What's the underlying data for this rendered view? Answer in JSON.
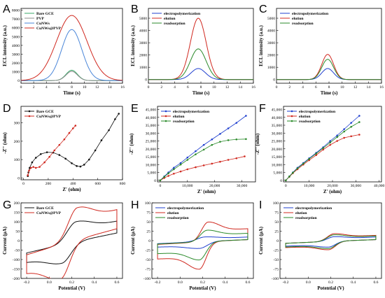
{
  "figure": {
    "panels": [
      {
        "letter": "A"
      },
      {
        "letter": "B"
      },
      {
        "letter": "C"
      },
      {
        "letter": "D"
      },
      {
        "letter": "E"
      },
      {
        "letter": "F"
      },
      {
        "letter": "G"
      },
      {
        "letter": "H"
      },
      {
        "letter": "I"
      }
    ]
  },
  "colors": {
    "black": "#111111",
    "red": "#d0281f",
    "blue": "#1f3fcf",
    "green": "#2a8a2a",
    "gray": "#8c8c8c",
    "teal": "#3aaa6a",
    "lightblue": "#4a86d8"
  },
  "chart_data": [
    {
      "id": "A",
      "type": "line",
      "xlabel": "Time (s)",
      "ylabel": "ECL intensity (a.u.)",
      "xlim": [
        0,
        16
      ],
      "ylim": [
        -300,
        8200
      ],
      "xticks": [
        0,
        2,
        4,
        6,
        8,
        10,
        12,
        14,
        16
      ],
      "yticks": [
        0,
        1000,
        2000,
        3000,
        4000,
        5000,
        6000,
        7000,
        8000
      ],
      "legend": "top-left",
      "series": [
        {
          "name": "Bare GCE",
          "color": "#3aaa6a",
          "kind": "peak",
          "peak_x": 8,
          "peak_y": 1180,
          "width": 0.9
        },
        {
          "name": "PVP",
          "color": "#8c8c8c",
          "kind": "peak",
          "peak_x": 8,
          "peak_y": 1050,
          "width": 0.9
        },
        {
          "name": "CuNWs",
          "color": "#4a86d8",
          "kind": "peak",
          "peak_x": 8,
          "peak_y": 5800,
          "width": 1.6
        },
        {
          "name": "CuNWs@PVP",
          "color": "#d0281f",
          "kind": "peak",
          "peak_x": 8,
          "peak_y": 7400,
          "width": 2.4
        }
      ]
    },
    {
      "id": "B",
      "type": "line",
      "xlabel": "Time (s)",
      "ylabel": "ECL intensity (a.u.)",
      "xlim": [
        0,
        16
      ],
      "ylim": [
        -300,
        5800
      ],
      "xticks": [
        0,
        2,
        4,
        6,
        8,
        10,
        12,
        14,
        16
      ],
      "yticks": [
        0,
        1000,
        2000,
        3000,
        4000,
        5000
      ],
      "legend": "top-left",
      "series": [
        {
          "name": "electropolymerization",
          "color": "#1f3fcf",
          "kind": "peak",
          "peak_x": 7.6,
          "peak_y": 900,
          "width": 1.1
        },
        {
          "name": "elution",
          "color": "#d0281f",
          "kind": "peak",
          "peak_x": 7.6,
          "peak_y": 5000,
          "width": 1.2
        },
        {
          "name": "readsorption",
          "color": "#2a8a2a",
          "kind": "peak",
          "peak_x": 7.6,
          "peak_y": 2500,
          "width": 1.2
        }
      ]
    },
    {
      "id": "C",
      "type": "line",
      "xlabel": "Time (s)",
      "ylabel": "ECL intensity (a.u.)",
      "xlim": [
        0,
        16
      ],
      "ylim": [
        -300,
        5800
      ],
      "xticks": [
        0,
        2,
        4,
        6,
        8,
        10,
        12,
        14,
        16
      ],
      "yticks": [
        0,
        1000,
        2000,
        3000,
        4000,
        5000
      ],
      "legend": "top-left",
      "series": [
        {
          "name": "electropolymerization",
          "color": "#1f3fcf",
          "kind": "peak",
          "peak_x": 7.8,
          "peak_y": 900,
          "width": 0.9
        },
        {
          "name": "elution",
          "color": "#d0281f",
          "kind": "peak",
          "peak_x": 7.8,
          "peak_y": 2050,
          "width": 0.9
        },
        {
          "name": "readsorption",
          "color": "#2a8a2a",
          "kind": "peak",
          "peak_x": 7.8,
          "peak_y": 1650,
          "width": 0.9
        }
      ]
    },
    {
      "id": "D",
      "type": "scatter",
      "xlabel": "Z' (ohm)",
      "ylabel": "-Z'' (ohm)",
      "xlim": [
        -20,
        800
      ],
      "ylim": [
        -10,
        390
      ],
      "xticks": [
        0,
        200,
        400,
        600,
        800
      ],
      "yticks": [
        0,
        100,
        200,
        300
      ],
      "legend": "top-left",
      "series": [
        {
          "name": "Bare GCE",
          "color": "#111111",
          "kind": "points",
          "x": [
            35,
            40,
            50,
            70,
            100,
            140,
            190,
            240,
            290,
            340,
            390,
            430,
            460,
            490,
            530,
            580,
            630,
            690,
            740,
            770
          ],
          "y": [
            10,
            30,
            55,
            85,
            110,
            130,
            140,
            138,
            125,
            105,
            80,
            65,
            62,
            72,
            100,
            150,
            205,
            260,
            320,
            350
          ]
        },
        {
          "name": "CuNWs@PVP",
          "color": "#d0281f",
          "kind": "points",
          "x": [
            35,
            45,
            60,
            80,
            100,
            130,
            170,
            210,
            250,
            290,
            330,
            370,
            400,
            420
          ],
          "y": [
            15,
            40,
            55,
            60,
            55,
            60,
            85,
            115,
            150,
            180,
            210,
            245,
            270,
            285
          ]
        }
      ]
    },
    {
      "id": "E",
      "type": "scatter",
      "xlabel": "Z' (ohm)",
      "ylabel": "-Z'' (ohm)",
      "xlim": [
        -1000,
        35000
      ],
      "ylim": [
        -1000,
        47000
      ],
      "xticks": [
        0,
        10000,
        20000,
        30000
      ],
      "xticklabels": [
        "0",
        "10,000",
        "20,000",
        "30,000"
      ],
      "yticks": [
        0,
        5000,
        10000,
        15000,
        20000,
        25000,
        30000,
        35000,
        40000,
        45000
      ],
      "yticklabels": [
        "0",
        "5,000",
        "10,000",
        "15,000",
        "20,000",
        "25,000",
        "30,000",
        "35,000",
        "40,000",
        "45,000"
      ],
      "legend": "top-left",
      "series": [
        {
          "name": "electropolymerization",
          "color": "#1f3fcf",
          "kind": "points",
          "x": [
            0,
            1500,
            3000,
            5000,
            7500,
            10000,
            13000,
            16000,
            19000,
            22000,
            25000,
            28000,
            31500
          ],
          "y": [
            0,
            2500,
            5000,
            8000,
            11000,
            14500,
            18500,
            22500,
            26000,
            29500,
            33000,
            36500,
            41000
          ]
        },
        {
          "name": "elution",
          "color": "#d0281f",
          "kind": "points",
          "x": [
            0,
            1500,
            3000,
            5000,
            7500,
            10000,
            13000,
            16000,
            19000,
            22000,
            25000,
            28000,
            31000
          ],
          "y": [
            0,
            1500,
            2800,
            4200,
            5600,
            7000,
            8300,
            9500,
            10600,
            11800,
            13000,
            14000,
            15200
          ]
        },
        {
          "name": "readsorption",
          "color": "#2a8a2a",
          "kind": "points",
          "x": [
            0,
            1500,
            3000,
            5000,
            7500,
            10000,
            13000,
            16000,
            19000,
            22000,
            25000,
            28000,
            31500
          ],
          "y": [
            0,
            2200,
            4400,
            7000,
            10000,
            13000,
            16500,
            19500,
            22500,
            24500,
            25500,
            26000,
            26200
          ]
        }
      ]
    },
    {
      "id": "F",
      "type": "scatter",
      "xlabel": "Z' (ohm)",
      "ylabel": "-Z'' (ohm)",
      "xlim": [
        -1000,
        41000
      ],
      "ylim": [
        -1000,
        47000
      ],
      "xticks": [
        0,
        10000,
        20000,
        30000,
        40000
      ],
      "xticklabels": [
        "0",
        "10,000",
        "20,000",
        "30,000",
        "40,000"
      ],
      "yticks": [
        0,
        5000,
        10000,
        15000,
        20000,
        25000,
        30000,
        35000,
        40000,
        45000
      ],
      "yticklabels": [
        "0",
        "5,000",
        "10,000",
        "15,000",
        "20,000",
        "25,000",
        "30,000",
        "35,000",
        "40,000",
        "45,000"
      ],
      "legend": "top-left",
      "series": [
        {
          "name": "electropolymerization",
          "color": "#1f3fcf",
          "kind": "points",
          "x": [
            0,
            1500,
            3000,
            5000,
            7500,
            10000,
            13000,
            16000,
            19000,
            22000,
            25000,
            28000,
            31500
          ],
          "y": [
            0,
            2500,
            5000,
            8000,
            11000,
            14000,
            17500,
            21000,
            25000,
            28500,
            32500,
            36500,
            41000
          ]
        },
        {
          "name": "elution",
          "color": "#d0281f",
          "kind": "points",
          "x": [
            0,
            1500,
            3000,
            5000,
            7500,
            10000,
            13000,
            16000,
            19000,
            22000,
            25000,
            28000,
            31500
          ],
          "y": [
            0,
            2200,
            4500,
            7000,
            10000,
            12800,
            16000,
            19500,
            22500,
            25000,
            27000,
            28000,
            29000
          ]
        },
        {
          "name": "readsorption",
          "color": "#2a8a2a",
          "kind": "points",
          "x": [
            0,
            1500,
            3000,
            5000,
            7500,
            10000,
            13000,
            16000,
            19000,
            22000,
            25000,
            28000,
            31500
          ],
          "y": [
            0,
            2400,
            4800,
            7600,
            10600,
            13600,
            17000,
            20500,
            24000,
            27500,
            31000,
            34000,
            37000
          ]
        }
      ]
    },
    {
      "id": "G",
      "type": "line",
      "xlabel": "Potential (V)",
      "ylabel": "Current (μA)",
      "xlim": [
        -0.25,
        0.65
      ],
      "ylim": [
        -200,
        200
      ],
      "xticks": [
        -0.2,
        0.0,
        0.2,
        0.4,
        0.6
      ],
      "xticklabels": [
        "-0.2",
        "0.0",
        "0.2",
        "0.4",
        "0.6"
      ],
      "yticks": [
        -200,
        -150,
        -100,
        -50,
        0,
        50,
        100,
        150,
        200
      ],
      "legend": "top-left",
      "series": [
        {
          "name": "Bare GCE",
          "color": "#111111",
          "kind": "cv",
          "x0": -0.2,
          "x1": 0.6,
          "ipa": 105,
          "epa": 0.24,
          "ipc": -100,
          "epc": 0.11,
          "w": 0.08,
          "base0": -65,
          "base1": 45
        },
        {
          "name": "CuNWs@PVP",
          "color": "#d0281f",
          "kind": "cv",
          "x0": -0.2,
          "x1": 0.6,
          "ipa": 168,
          "epa": 0.25,
          "ipc": -185,
          "epc": 0.1,
          "w": 0.08,
          "base0": -75,
          "base1": 70
        }
      ]
    },
    {
      "id": "H",
      "type": "line",
      "xlabel": "Potential (V)",
      "ylabel": "Current (μA)",
      "xlim": [
        -0.25,
        0.65
      ],
      "ylim": [
        -100,
        100
      ],
      "xticks": [
        -0.2,
        0.0,
        0.2,
        0.4,
        0.6
      ],
      "xticklabels": [
        "-0.2",
        "0.0",
        "0.2",
        "0.4",
        "0.6"
      ],
      "yticks": [
        -100,
        -75,
        -50,
        -25,
        0,
        25,
        50,
        75,
        100
      ],
      "legend": "top-left",
      "series": [
        {
          "name": "electropolymerization",
          "color": "#1f3fcf",
          "kind": "cv",
          "x0": -0.2,
          "x1": 0.6,
          "ipa": 12,
          "epa": 0.22,
          "ipc": -18,
          "epc": 0.17,
          "w": 0.07,
          "base0": -8,
          "base1": 3
        },
        {
          "name": "elution",
          "color": "#d0281f",
          "kind": "cv",
          "x0": -0.2,
          "x1": 0.6,
          "ipa": 52,
          "epa": 0.25,
          "ipc": -72,
          "epc": 0.17,
          "w": 0.06,
          "base0": -10,
          "base1": 3
        },
        {
          "name": "readsorption",
          "color": "#2a8a2a",
          "kind": "cv",
          "x0": -0.2,
          "x1": 0.6,
          "ipa": 30,
          "epa": 0.24,
          "ipc": -48,
          "epc": 0.17,
          "w": 0.06,
          "base0": -9,
          "base1": 3
        }
      ]
    },
    {
      "id": "I",
      "type": "line",
      "xlabel": "Potential (V)",
      "ylabel": "Current (μA)",
      "xlim": [
        -0.25,
        0.65
      ],
      "ylim": [
        -100,
        100
      ],
      "xticks": [
        -0.2,
        0.0,
        0.2,
        0.4,
        0.6
      ],
      "xticklabels": [
        "-0.2",
        "0.0",
        "0.2",
        "0.4",
        "0.6"
      ],
      "yticks": [
        -100,
        -75,
        -50,
        -25,
        0,
        25,
        50,
        75,
        100
      ],
      "legend": "top-left",
      "series": [
        {
          "name": "electropolymerization",
          "color": "#1f3fcf",
          "kind": "cv",
          "x0": -0.2,
          "x1": 0.6,
          "ipa": 12,
          "epa": 0.23,
          "ipc": -15,
          "epc": 0.18,
          "w": 0.06,
          "base0": -7,
          "base1": 3
        },
        {
          "name": "elution",
          "color": "#d0281f",
          "kind": "cv",
          "x0": -0.2,
          "x1": 0.6,
          "ipa": 20,
          "epa": 0.23,
          "ipc": -22,
          "epc": 0.18,
          "w": 0.06,
          "base0": -7,
          "base1": 3
        },
        {
          "name": "readsorption",
          "color": "#2a8a2a",
          "kind": "cv",
          "x0": -0.2,
          "x1": 0.6,
          "ipa": 17,
          "epa": 0.23,
          "ipc": -19,
          "epc": 0.18,
          "w": 0.06,
          "base0": -7,
          "base1": 3
        }
      ]
    }
  ]
}
